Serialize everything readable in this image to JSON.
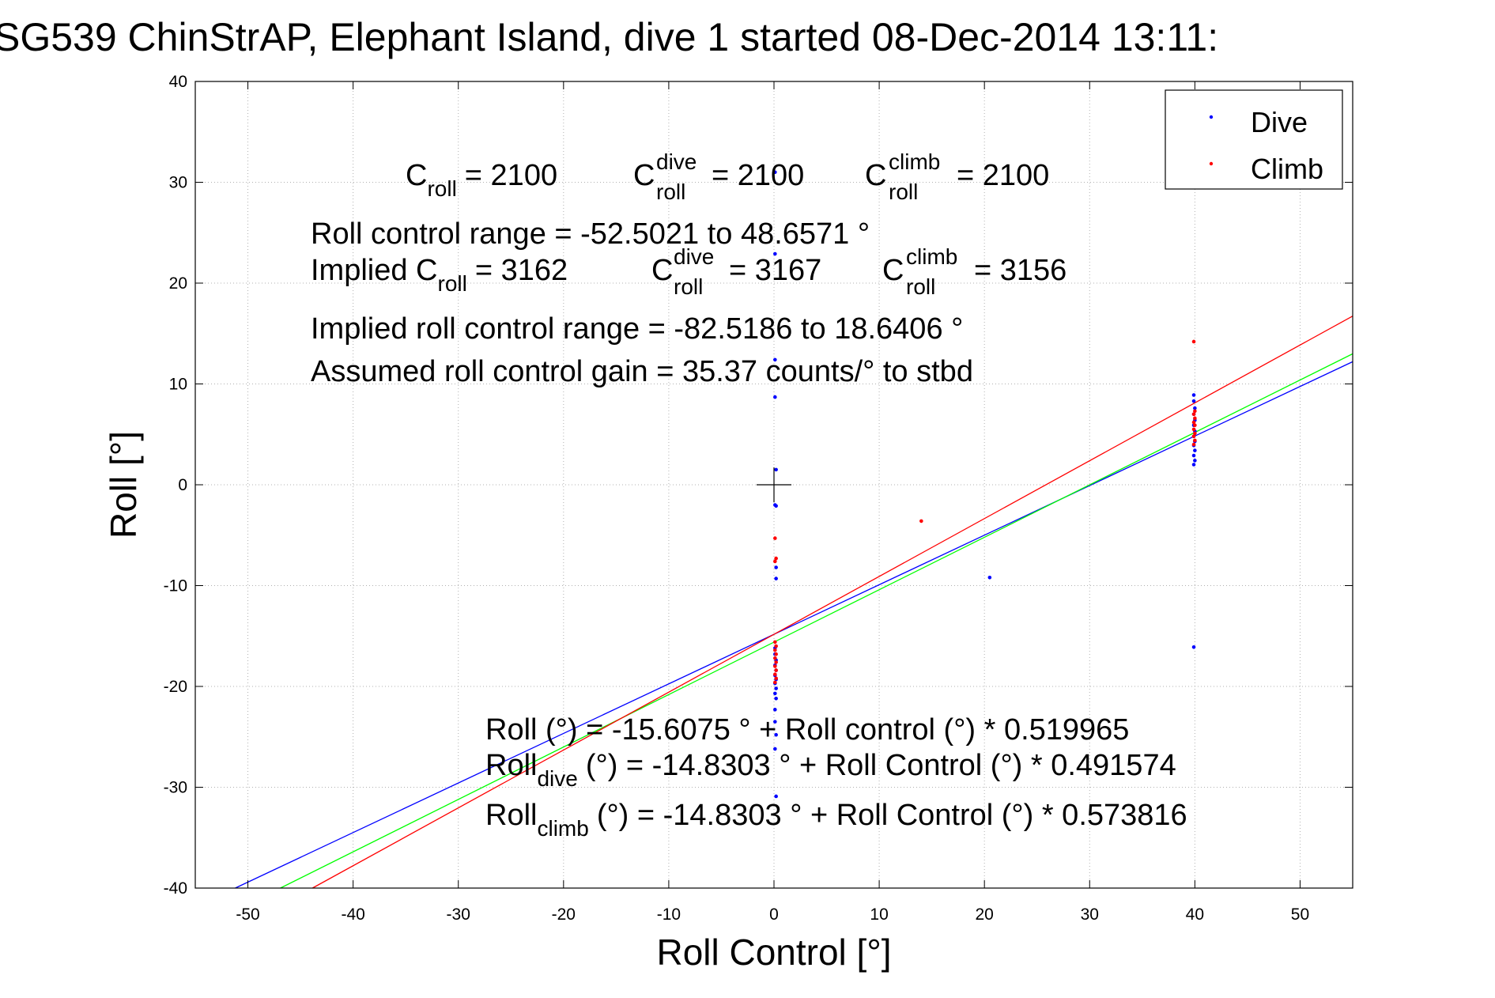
{
  "title": "SG539 ChinStrAP, Elephant Island, dive 1 started 08-Dec-2014 13:11:",
  "chart_data": {
    "type": "scatter",
    "xlabel": "Roll Control [°]",
    "ylabel": "Roll [°]",
    "xlim": [
      -55,
      55
    ],
    "ylim": [
      -40,
      40
    ],
    "xticks": [
      -50,
      -40,
      -30,
      -20,
      -10,
      0,
      10,
      20,
      30,
      40,
      50
    ],
    "yticks": [
      -40,
      -30,
      -20,
      -10,
      0,
      10,
      20,
      30,
      40
    ],
    "grid": true,
    "legend_position": "top-right",
    "series": [
      {
        "name": "Dive",
        "color": "#0000ff",
        "points": [
          [
            0.1,
            31.0
          ],
          [
            0.1,
            22.9
          ],
          [
            0.1,
            12.4
          ],
          [
            0.1,
            8.7
          ],
          [
            0.2,
            1.5
          ],
          [
            0.1,
            -2.0
          ],
          [
            0.2,
            -2.1
          ],
          [
            0.2,
            -8.2
          ],
          [
            0.2,
            -9.3
          ],
          [
            0.1,
            -16.2
          ],
          [
            0.1,
            -16.8
          ],
          [
            0.2,
            -17.4
          ],
          [
            0.1,
            -17.9
          ],
          [
            0.2,
            -18.4
          ],
          [
            0.1,
            -18.9
          ],
          [
            0.2,
            -19.3
          ],
          [
            0.1,
            -19.7
          ],
          [
            0.2,
            -20.2
          ],
          [
            0.1,
            -20.7
          ],
          [
            0.2,
            -21.2
          ],
          [
            0.1,
            -22.3
          ],
          [
            0.1,
            -23.5
          ],
          [
            0.2,
            -24.8
          ],
          [
            0.1,
            -26.2
          ],
          [
            0.2,
            -30.9
          ],
          [
            20.5,
            -9.2
          ],
          [
            39.9,
            8.9
          ],
          [
            39.9,
            8.3
          ],
          [
            40.0,
            7.6
          ],
          [
            39.9,
            7.0
          ],
          [
            40.0,
            6.4
          ],
          [
            39.9,
            5.9
          ],
          [
            40.0,
            5.3
          ],
          [
            39.9,
            4.8
          ],
          [
            40.0,
            4.3
          ],
          [
            39.9,
            3.9
          ],
          [
            40.0,
            3.4
          ],
          [
            39.9,
            2.9
          ],
          [
            40.0,
            2.4
          ],
          [
            39.9,
            2.0
          ],
          [
            39.9,
            -16.1
          ]
        ]
      },
      {
        "name": "Climb",
        "color": "#ff0000",
        "points": [
          [
            0.1,
            -5.3
          ],
          [
            0.2,
            -7.3
          ],
          [
            0.1,
            -7.6
          ],
          [
            0.1,
            -15.6
          ],
          [
            0.2,
            -16.0
          ],
          [
            0.1,
            -16.4
          ],
          [
            0.2,
            -16.8
          ],
          [
            0.1,
            -17.2
          ],
          [
            0.2,
            -17.6
          ],
          [
            0.1,
            -18.0
          ],
          [
            0.2,
            -18.4
          ],
          [
            0.1,
            -18.8
          ],
          [
            0.2,
            -19.2
          ],
          [
            0.1,
            -19.6
          ],
          [
            14.0,
            -3.6
          ],
          [
            39.9,
            14.2
          ],
          [
            40.0,
            7.3
          ],
          [
            39.9,
            7.0
          ],
          [
            40.0,
            6.6
          ],
          [
            39.9,
            6.2
          ],
          [
            40.0,
            5.9
          ],
          [
            39.9,
            5.5
          ],
          [
            40.0,
            5.1
          ],
          [
            39.9,
            4.8
          ],
          [
            40.0,
            4.4
          ],
          [
            39.9,
            4.0
          ]
        ]
      }
    ],
    "fit_lines": [
      {
        "color": "#0000ff",
        "intercept": -14.8303,
        "slope": 0.491574
      },
      {
        "color": "#00ff00",
        "intercept": -15.6075,
        "slope": 0.519965
      },
      {
        "color": "#ff0000",
        "intercept": -14.8303,
        "slope": 0.573816
      }
    ],
    "center_cross": [
      0,
      0
    ]
  },
  "annotations": {
    "c_roll": {
      "base": "C",
      "sub": "roll",
      "value": "= 2100"
    },
    "c_roll_dive": {
      "base": "C",
      "sup": "dive",
      "sub": "roll",
      "value": "= 2100"
    },
    "c_roll_climb": {
      "base": "C",
      "sup": "climb",
      "sub": "roll",
      "value": "= 2100"
    },
    "control_range": "Roll control range = -52.5021 to 48.6571 °",
    "implied_c_roll": {
      "prefix": "Implied C",
      "sub": "roll",
      "value": "= 3162"
    },
    "implied_c_dive": {
      "base": "C",
      "sup": "dive",
      "sub": "roll",
      "value": "= 3167"
    },
    "implied_c_climb": {
      "base": "C",
      "sup": "climb",
      "sub": "roll",
      "value": "= 3156"
    },
    "implied_range": "Implied roll control range = -82.5186 to 18.6406 °",
    "gain": "Assumed roll control gain = 35.37 counts/° to stbd",
    "fit_all": "Roll (°) = -15.6075 ° + Roll control (°) * 0.519965",
    "fit_dive": {
      "base": "Roll",
      "sub": "dive",
      "value": "(°) = -14.8303 ° + Roll Control (°) * 0.491574"
    },
    "fit_climb": {
      "base": "Roll",
      "sub": "climb",
      "value": "(°) = -14.8303 ° + Roll Control (°) * 0.573816"
    }
  }
}
